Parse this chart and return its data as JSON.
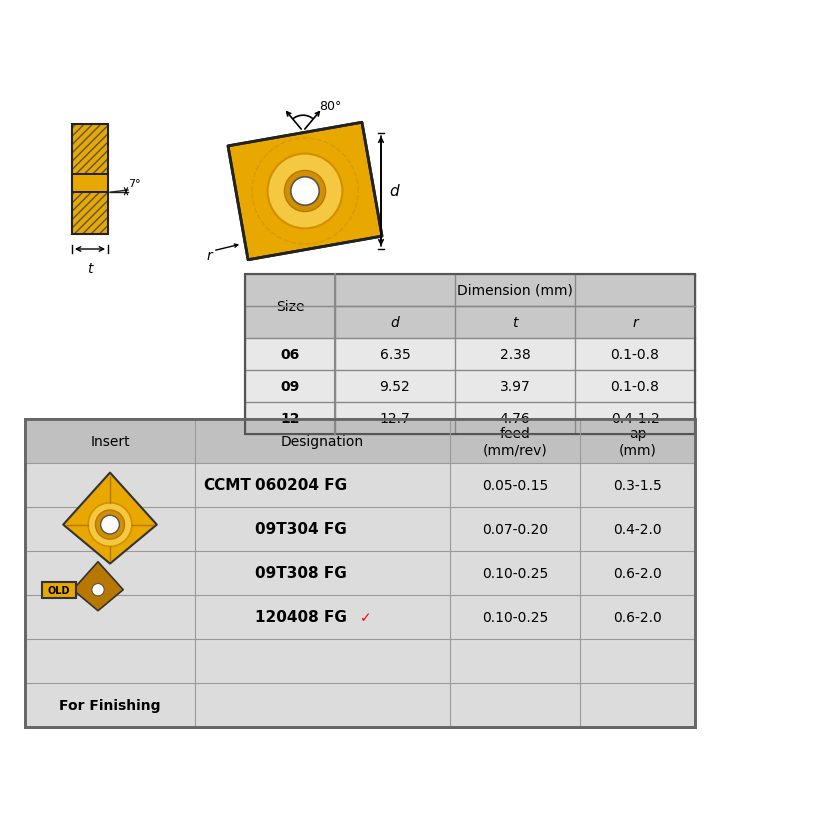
{
  "bg_color": "#ffffff",
  "gold": "#E8A800",
  "gold_dark": "#B87800",
  "gold_light": "#F5C842",
  "gold_mid": "#D09000",
  "table1_header_bg": "#C8C8C8",
  "table1_row_bg": "#E8E8E8",
  "table2_header_bg": "#C0C0C0",
  "table2_row_bg": "#DCDCDC",
  "table_border": "#888888",
  "angle_80": "80°",
  "angle_7": "7°",
  "dim_d": "d",
  "dim_t": "t",
  "dim_r": "r",
  "table1_title": "Dimension (mm)",
  "table1_col0": "Size",
  "table1_subcols": [
    "d",
    "t",
    "r"
  ],
  "table1_rows": [
    [
      "06",
      "6.35",
      "2.38",
      "0.1-0.8"
    ],
    [
      "09",
      "9.52",
      "3.97",
      "0.1-0.8"
    ],
    [
      "12",
      "12.7",
      "4.76",
      "0.4-1.2"
    ]
  ],
  "table2_headers": [
    "Insert",
    "Designation",
    "feed\n(mm/rev)",
    "ap\n(mm)"
  ],
  "ccmt_label": "CCMT",
  "table2_rows": [
    [
      "060204 FG",
      "0.05-0.15",
      "0.3-1.5"
    ],
    [
      "09T304 FG",
      "0.07-0.20",
      "0.4-2.0"
    ],
    [
      "09T308 FG",
      "0.10-0.25",
      "0.6-2.0"
    ],
    [
      "120408 FG",
      "0.10-0.25",
      "0.6-2.0"
    ]
  ],
  "checkmark_row": 3,
  "for_finishing": "For Finishing",
  "old_label": "OLD"
}
